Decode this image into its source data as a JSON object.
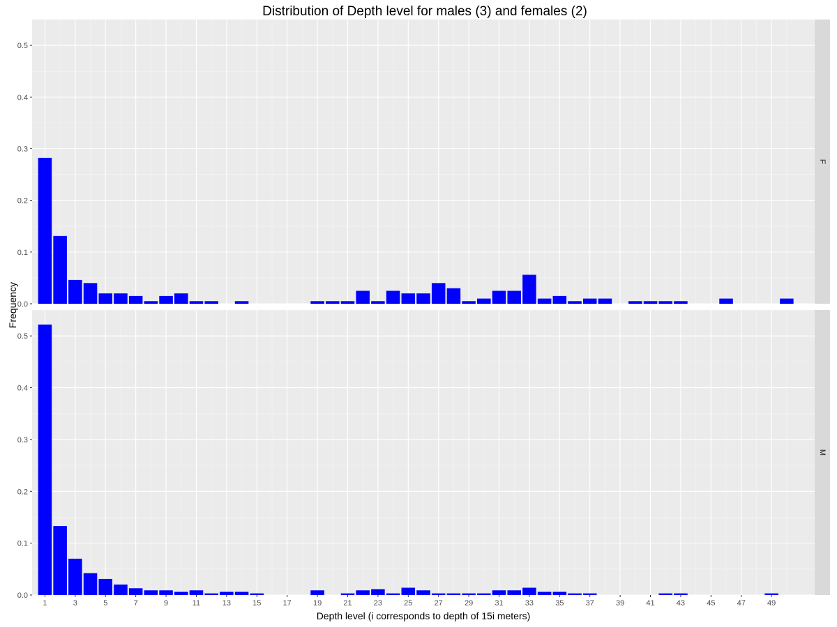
{
  "chart_data": {
    "type": "bar",
    "title": "Distribution of Depth level for males (3) and females (2)",
    "xlabel": "Depth level (i corresponds to depth of 15i meters)",
    "ylabel": "Frequency",
    "xlim": [
      0.15,
      51.85
    ],
    "x_ticks": [
      1,
      3,
      5,
      7,
      9,
      11,
      13,
      15,
      17,
      19,
      21,
      23,
      25,
      27,
      29,
      31,
      33,
      35,
      37,
      39,
      41,
      43,
      45,
      47,
      49
    ],
    "ylim": [
      0,
      0.55
    ],
    "y_ticks": [
      0.0,
      0.1,
      0.2,
      0.3,
      0.4,
      0.5
    ],
    "y_tick_labels": [
      "0.0",
      "0.1",
      "0.2",
      "0.3",
      "0.4",
      "0.5"
    ],
    "grid": true,
    "bar_color": "#0000ff",
    "panel_bg": "#ebebeb",
    "strip_bg": "#d9d9d9",
    "facets": [
      {
        "label": "F",
        "x": [
          1,
          2,
          3,
          4,
          5,
          6,
          7,
          8,
          9,
          10,
          11,
          12,
          14,
          19,
          20,
          21,
          22,
          23,
          24,
          25,
          26,
          27,
          28,
          29,
          30,
          31,
          32,
          33,
          34,
          35,
          36,
          37,
          38,
          40,
          41,
          42,
          43,
          46,
          50
        ],
        "values": [
          0.282,
          0.131,
          0.046,
          0.04,
          0.02,
          0.02,
          0.015,
          0.005,
          0.015,
          0.02,
          0.005,
          0.005,
          0.005,
          0.005,
          0.005,
          0.005,
          0.025,
          0.005,
          0.025,
          0.02,
          0.02,
          0.04,
          0.03,
          0.005,
          0.01,
          0.025,
          0.025,
          0.056,
          0.01,
          0.015,
          0.005,
          0.01,
          0.01,
          0.005,
          0.005,
          0.005,
          0.005,
          0.01,
          0.01
        ]
      },
      {
        "label": "M",
        "x": [
          1,
          2,
          3,
          4,
          5,
          6,
          7,
          8,
          9,
          10,
          11,
          12,
          13,
          14,
          15,
          19,
          21,
          22,
          23,
          24,
          25,
          26,
          27,
          28,
          29,
          30,
          31,
          32,
          33,
          34,
          35,
          36,
          37,
          42,
          43,
          49
        ],
        "values": [
          0.522,
          0.133,
          0.07,
          0.042,
          0.031,
          0.02,
          0.013,
          0.009,
          0.009,
          0.006,
          0.009,
          0.003,
          0.006,
          0.006,
          0.003,
          0.009,
          0.003,
          0.009,
          0.011,
          0.003,
          0.014,
          0.009,
          0.003,
          0.003,
          0.003,
          0.003,
          0.009,
          0.009,
          0.014,
          0.006,
          0.006,
          0.003,
          0.003,
          0.003,
          0.003,
          0.003
        ]
      }
    ]
  }
}
